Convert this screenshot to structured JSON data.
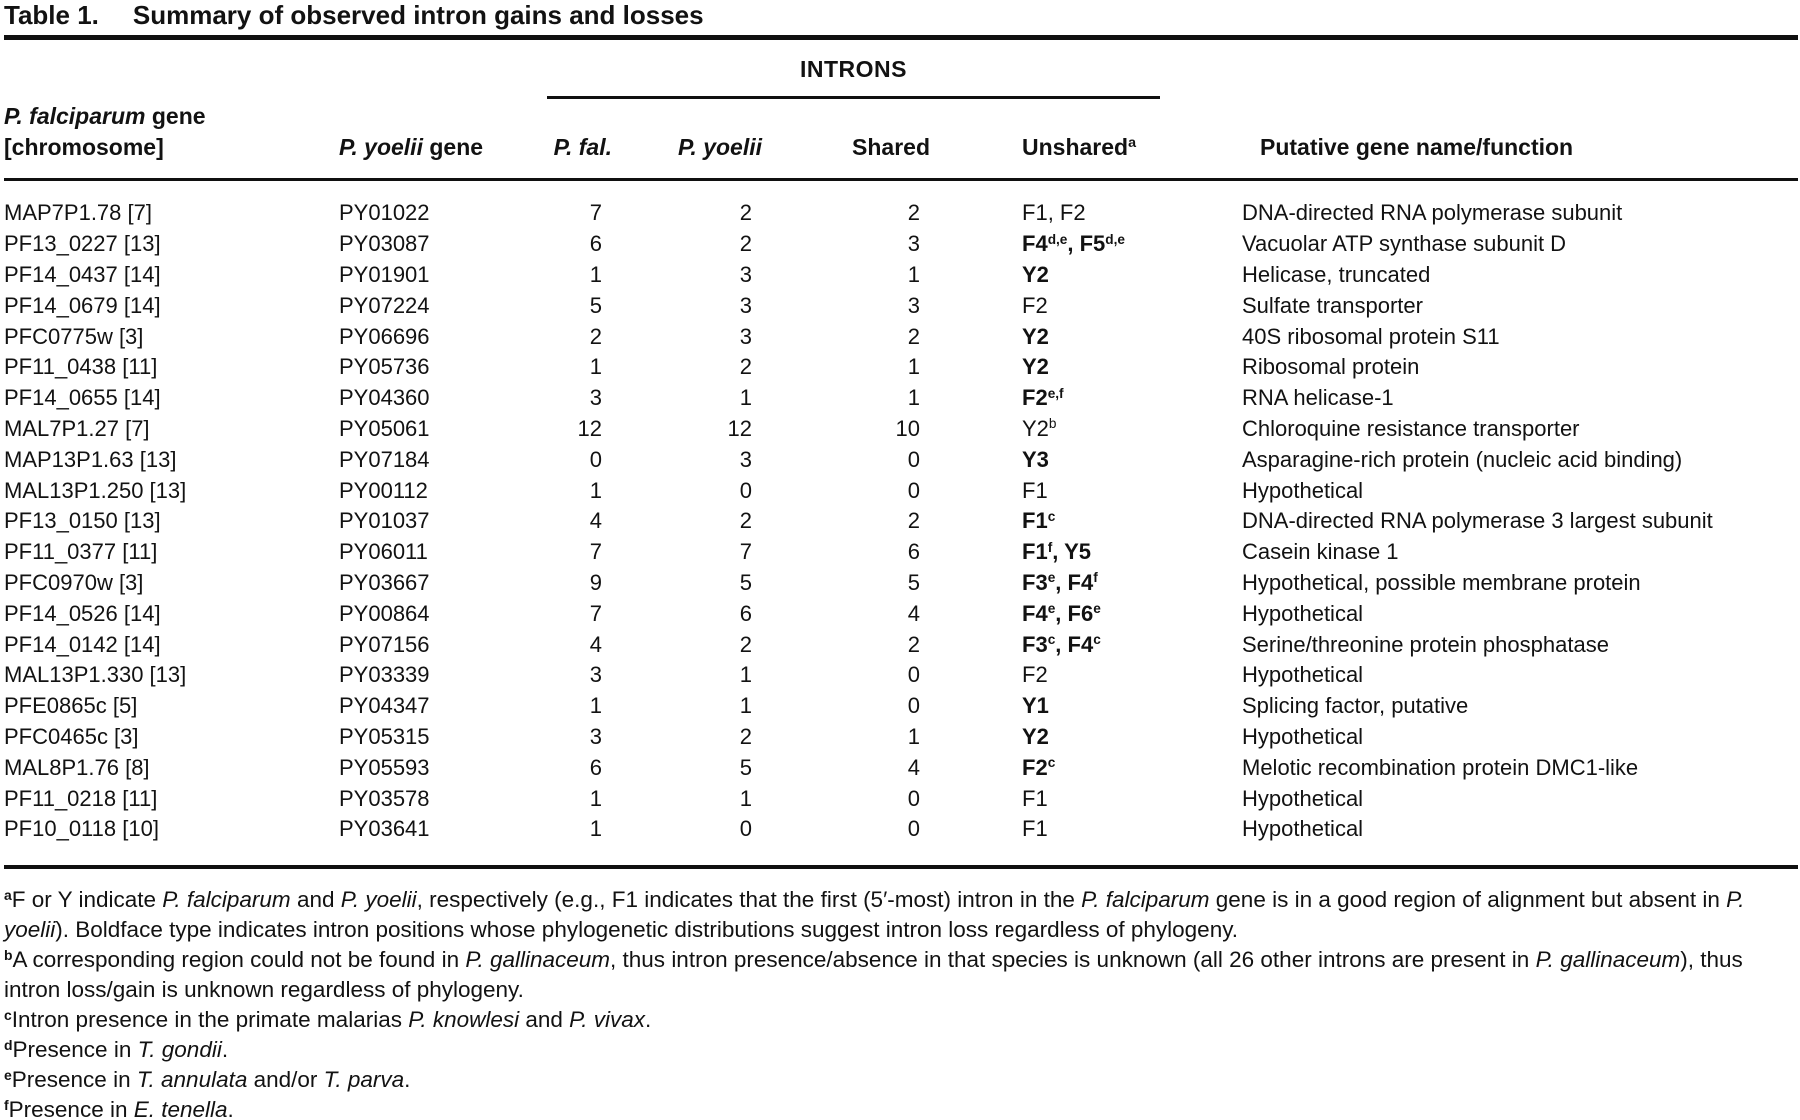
{
  "caption": {
    "label": "Table 1.",
    "title": "Summary of observed intron gains and losses"
  },
  "header": {
    "introns": "INTRONS",
    "col1": {
      "italic": "P. falciparum",
      "rest": " gene",
      "line2": "[chromosome]"
    },
    "col2": {
      "italic": "P. yoelii",
      "rest": " gene"
    },
    "col3_italic": "P. fal.",
    "col4_italic": "P. yoelii",
    "col5": "Shared",
    "col6": {
      "label": "Unshared",
      "sup": "a"
    },
    "col7": "Putative gene name/function"
  },
  "table": {
    "rows": [
      {
        "gene": "MAP7P1.78 [7]",
        "py": "PY01022",
        "pfal": "7",
        "pyoelii": "2",
        "shared": "2",
        "unshared": [
          {
            "text": "F1",
            "sup": "",
            "bold": false
          },
          {
            "text": "F2",
            "sup": "",
            "bold": false
          }
        ],
        "function": "DNA-directed RNA polymerase subunit"
      },
      {
        "gene": "PF13_0227 [13]",
        "py": "PY03087",
        "pfal": "6",
        "pyoelii": "2",
        "shared": "3",
        "unshared": [
          {
            "text": "F4",
            "sup": "d,e",
            "bold": true
          },
          {
            "text": "F5",
            "sup": "d,e",
            "bold": true
          }
        ],
        "function": "Vacuolar ATP synthase subunit D"
      },
      {
        "gene": "PF14_0437 [14]",
        "py": "PY01901",
        "pfal": "1",
        "pyoelii": "3",
        "shared": "1",
        "unshared": [
          {
            "text": "Y2",
            "sup": "",
            "bold": true
          }
        ],
        "function": "Helicase, truncated"
      },
      {
        "gene": "PF14_0679 [14]",
        "py": "PY07224",
        "pfal": "5",
        "pyoelii": "3",
        "shared": "3",
        "unshared": [
          {
            "text": "F2",
            "sup": "",
            "bold": false
          }
        ],
        "function": "Sulfate transporter"
      },
      {
        "gene": "PFC0775w [3]",
        "py": "PY06696",
        "pfal": "2",
        "pyoelii": "3",
        "shared": "2",
        "unshared": [
          {
            "text": "Y2",
            "sup": "",
            "bold": true
          }
        ],
        "function": "40S ribosomal protein S11"
      },
      {
        "gene": "PF11_0438 [11]",
        "py": "PY05736",
        "pfal": "1",
        "pyoelii": "2",
        "shared": "1",
        "unshared": [
          {
            "text": "Y2",
            "sup": "",
            "bold": true
          }
        ],
        "function": "Ribosomal protein"
      },
      {
        "gene": "PF14_0655 [14]",
        "py": "PY04360",
        "pfal": "3",
        "pyoelii": "1",
        "shared": "1",
        "unshared": [
          {
            "text": "F2",
            "sup": "e,f",
            "bold": true
          }
        ],
        "function": "RNA helicase-1"
      },
      {
        "gene": "MAL7P1.27 [7]",
        "py": "PY05061",
        "pfal": "12",
        "pyoelii": "12",
        "shared": "10",
        "unshared": [
          {
            "text": "Y2",
            "sup": "b",
            "bold": false
          }
        ],
        "function": "Chloroquine resistance transporter"
      },
      {
        "gene": "MAP13P1.63 [13]",
        "py": "PY07184",
        "pfal": "0",
        "pyoelii": "3",
        "shared": "0",
        "unshared": [
          {
            "text": "Y3",
            "sup": "",
            "bold": true
          }
        ],
        "function": "Asparagine-rich protein (nucleic acid binding)"
      },
      {
        "gene": "MAL13P1.250 [13]",
        "py": "PY00112",
        "pfal": "1",
        "pyoelii": "0",
        "shared": "0",
        "unshared": [
          {
            "text": "F1",
            "sup": "",
            "bold": false
          }
        ],
        "function": "Hypothetical"
      },
      {
        "gene": "PF13_0150 [13]",
        "py": "PY01037",
        "pfal": "4",
        "pyoelii": "2",
        "shared": "2",
        "unshared": [
          {
            "text": "F1",
            "sup": "c",
            "bold": true
          }
        ],
        "function": "DNA-directed RNA polymerase 3 largest subunit"
      },
      {
        "gene": "PF11_0377 [11]",
        "py": "PY06011",
        "pfal": "7",
        "pyoelii": "7",
        "shared": "6",
        "unshared": [
          {
            "text": "F1",
            "sup": "f",
            "bold": true
          },
          {
            "text": "Y5",
            "sup": "",
            "bold": true
          }
        ],
        "function": "Casein kinase 1"
      },
      {
        "gene": "PFC0970w [3]",
        "py": "PY03667",
        "pfal": "9",
        "pyoelii": "5",
        "shared": "5",
        "unshared": [
          {
            "text": "F3",
            "sup": "e",
            "bold": true
          },
          {
            "text": "F4",
            "sup": "f",
            "bold": true
          }
        ],
        "function": "Hypothetical, possible membrane protein"
      },
      {
        "gene": "PF14_0526 [14]",
        "py": "PY00864",
        "pfal": "7",
        "pyoelii": "6",
        "shared": "4",
        "unshared": [
          {
            "text": "F4",
            "sup": "e",
            "bold": true
          },
          {
            "text": "F6",
            "sup": "e",
            "bold": true
          }
        ],
        "function": "Hypothetical"
      },
      {
        "gene": "PF14_0142 [14]",
        "py": "PY07156",
        "pfal": "4",
        "pyoelii": "2",
        "shared": "2",
        "unshared": [
          {
            "text": "F3",
            "sup": "c",
            "bold": true
          },
          {
            "text": "F4",
            "sup": "c",
            "bold": true
          }
        ],
        "function": "Serine/threonine protein phosphatase"
      },
      {
        "gene": "MAL13P1.330 [13]",
        "py": "PY03339",
        "pfal": "3",
        "pyoelii": "1",
        "shared": "0",
        "unshared": [
          {
            "text": "F2",
            "sup": "",
            "bold": false
          }
        ],
        "function": "Hypothetical"
      },
      {
        "gene": "PFE0865c [5]",
        "py": "PY04347",
        "pfal": "1",
        "pyoelii": "1",
        "shared": "0",
        "unshared": [
          {
            "text": "Y1",
            "sup": "",
            "bold": true
          }
        ],
        "function": "Splicing factor, putative"
      },
      {
        "gene": "PFC0465c [3]",
        "py": "PY05315",
        "pfal": "3",
        "pyoelii": "2",
        "shared": "1",
        "unshared": [
          {
            "text": "Y2",
            "sup": "",
            "bold": true
          }
        ],
        "function": "Hypothetical"
      },
      {
        "gene": "MAL8P1.76 [8]",
        "py": "PY05593",
        "pfal": "6",
        "pyoelii": "5",
        "shared": "4",
        "unshared": [
          {
            "text": "F2",
            "sup": "c",
            "bold": true
          }
        ],
        "function": "Melotic recombination protein DMC1-like"
      },
      {
        "gene": "PF11_0218 [11]",
        "py": "PY03578",
        "pfal": "1",
        "pyoelii": "1",
        "shared": "0",
        "unshared": [
          {
            "text": "F1",
            "sup": "",
            "bold": false
          }
        ],
        "function": "Hypothetical"
      },
      {
        "gene": "PF10_0118 [10]",
        "py": "PY03641",
        "pfal": "1",
        "pyoelii": "0",
        "shared": "0",
        "unshared": [
          {
            "text": "F1",
            "sup": "",
            "bold": false
          }
        ],
        "function": "Hypothetical"
      }
    ]
  },
  "footnotes": [
    {
      "marker": "a",
      "segments": [
        {
          "style": "n",
          "text": "F or Y indicate "
        },
        {
          "style": "i",
          "text": "P. falciparum"
        },
        {
          "style": "n",
          "text": " and "
        },
        {
          "style": "i",
          "text": "P. yoelii"
        },
        {
          "style": "n",
          "text": ", respectively (e.g., F1 indicates that the first (5′-most) intron in the "
        },
        {
          "style": "i",
          "text": "P. falciparum"
        },
        {
          "style": "n",
          "text": " gene is in a good region of alignment but absent in "
        },
        {
          "style": "i",
          "text": "P. yoelii"
        },
        {
          "style": "n",
          "text": "). Boldface type indicates intron positions whose phylogenetic distributions suggest intron loss regardless of phylogeny."
        }
      ]
    },
    {
      "marker": "b",
      "segments": [
        {
          "style": "n",
          "text": "A corresponding region could not be found in "
        },
        {
          "style": "i",
          "text": "P. gallinaceum"
        },
        {
          "style": "n",
          "text": ", thus intron presence/absence in that species is unknown (all 26 other introns are present in "
        },
        {
          "style": "i",
          "text": "P. gallinaceum"
        },
        {
          "style": "n",
          "text": "), thus intron loss/gain is unknown regardless of phylogeny."
        }
      ]
    },
    {
      "marker": "c",
      "segments": [
        {
          "style": "n",
          "text": "Intron presence in the primate malarias "
        },
        {
          "style": "i",
          "text": "P. knowlesi"
        },
        {
          "style": "n",
          "text": " and "
        },
        {
          "style": "i",
          "text": "P. vivax"
        },
        {
          "style": "n",
          "text": "."
        }
      ]
    },
    {
      "marker": "d",
      "segments": [
        {
          "style": "n",
          "text": "Presence in "
        },
        {
          "style": "i",
          "text": "T. gondii"
        },
        {
          "style": "n",
          "text": "."
        }
      ]
    },
    {
      "marker": "e",
      "segments": [
        {
          "style": "n",
          "text": "Presence in "
        },
        {
          "style": "i",
          "text": "T. annulata"
        },
        {
          "style": "n",
          "text": " and/or "
        },
        {
          "style": "i",
          "text": "T. parva"
        },
        {
          "style": "n",
          "text": "."
        }
      ]
    },
    {
      "marker": "f",
      "segments": [
        {
          "style": "n",
          "text": "Presence in "
        },
        {
          "style": "i",
          "text": "E. tenella"
        },
        {
          "style": "n",
          "text": "."
        }
      ]
    }
  ]
}
